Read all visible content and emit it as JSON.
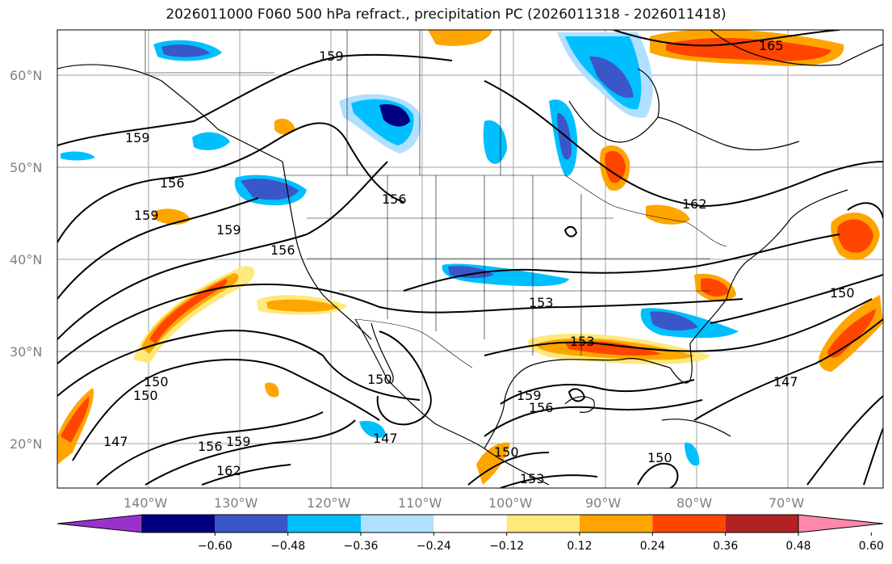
{
  "title": "2026011000 F060 500 hPa refract., precipitation PC (2026011318 - 2026011418)",
  "lat_ticks": [
    "60°N",
    "50°N",
    "40°N",
    "30°N",
    "20°N"
  ],
  "lon_ticks": [
    "140°W",
    "130°W",
    "120°W",
    "110°W",
    "100°W",
    "90°W",
    "80°W",
    "70°W"
  ],
  "colorbar": {
    "labels": [
      "−0.60",
      "−0.48",
      "−0.36",
      "−0.24",
      "−0.12",
      "0.12",
      "0.24",
      "0.36",
      "0.48",
      "0.60"
    ],
    "colors": [
      "#9932cc",
      "#000080",
      "#3a57c9",
      "#00bfff",
      "#b0e0ff",
      "#ffffff",
      "#ffe87c",
      "#ffa500",
      "#ff4500",
      "#b22222",
      "#ff88aa"
    ]
  },
  "contour_labels": [
    "159",
    "159",
    "156",
    "159",
    "159",
    "156",
    "156",
    "153",
    "153",
    "150",
    "150",
    "147",
    "147",
    "156",
    "159",
    "162",
    "150",
    "150",
    "153",
    "159",
    "156",
    "150",
    "162",
    "165",
    "147",
    "150"
  ],
  "colors": {
    "positive": "#ff4500",
    "negative": "#00bfff",
    "contour": "#000000",
    "grid": "#a0a0a0"
  }
}
